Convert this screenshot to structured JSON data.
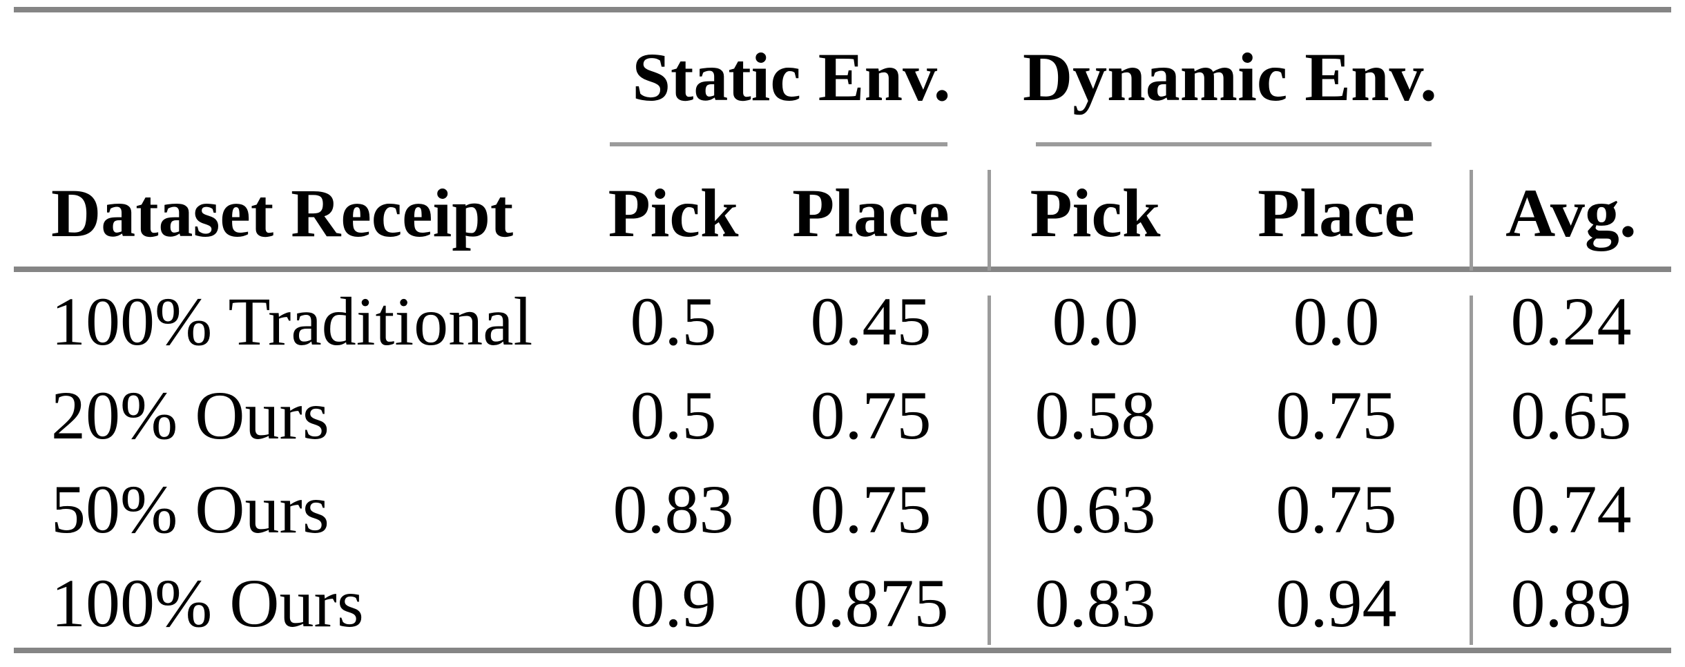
{
  "table": {
    "group_headers": {
      "static": "Static Env.",
      "dynamic": "Dynamic Env."
    },
    "column_headers": {
      "dataset": "Dataset Receipt",
      "static_pick": "Pick",
      "static_place": "Place",
      "dynamic_pick": "Pick",
      "dynamic_place": "Place",
      "avg": "Avg."
    },
    "rows": [
      [
        "100% Traditional",
        "0.5",
        "0.45",
        "0.0",
        "0.0",
        "0.24"
      ],
      [
        "20% Ours",
        "0.5",
        "0.75",
        "0.58",
        "0.75",
        "0.65"
      ],
      [
        "50% Ours",
        "0.83",
        "0.75",
        "0.63",
        "0.75",
        "0.74"
      ],
      [
        "100% Ours",
        "0.9",
        "0.875",
        "0.83",
        "0.94",
        "0.89"
      ]
    ]
  },
  "colors": {
    "heavy_rule": "#858585",
    "light_rule": "#9b9b9b",
    "text": "#000000",
    "background": "#ffffff"
  },
  "chart_data": {
    "type": "table",
    "column_groups": [
      {
        "label": "Static Env.",
        "columns": [
          "Pick",
          "Place"
        ]
      },
      {
        "label": "Dynamic Env.",
        "columns": [
          "Pick",
          "Place"
        ]
      }
    ],
    "columns": [
      "Dataset Receipt",
      "Pick",
      "Place",
      "Pick",
      "Place",
      "Avg."
    ],
    "rows": [
      {
        "dataset_receipt": "100% Traditional",
        "static_pick": 0.5,
        "static_place": 0.45,
        "dynamic_pick": 0.0,
        "dynamic_place": 0.0,
        "avg": 0.24
      },
      {
        "dataset_receipt": "20% Ours",
        "static_pick": 0.5,
        "static_place": 0.75,
        "dynamic_pick": 0.58,
        "dynamic_place": 0.75,
        "avg": 0.65
      },
      {
        "dataset_receipt": "50% Ours",
        "static_pick": 0.83,
        "static_place": 0.75,
        "dynamic_pick": 0.63,
        "dynamic_place": 0.75,
        "avg": 0.74
      },
      {
        "dataset_receipt": "100% Ours",
        "static_pick": 0.9,
        "static_place": 0.875,
        "dynamic_pick": 0.83,
        "dynamic_place": 0.94,
        "avg": 0.89
      }
    ]
  }
}
